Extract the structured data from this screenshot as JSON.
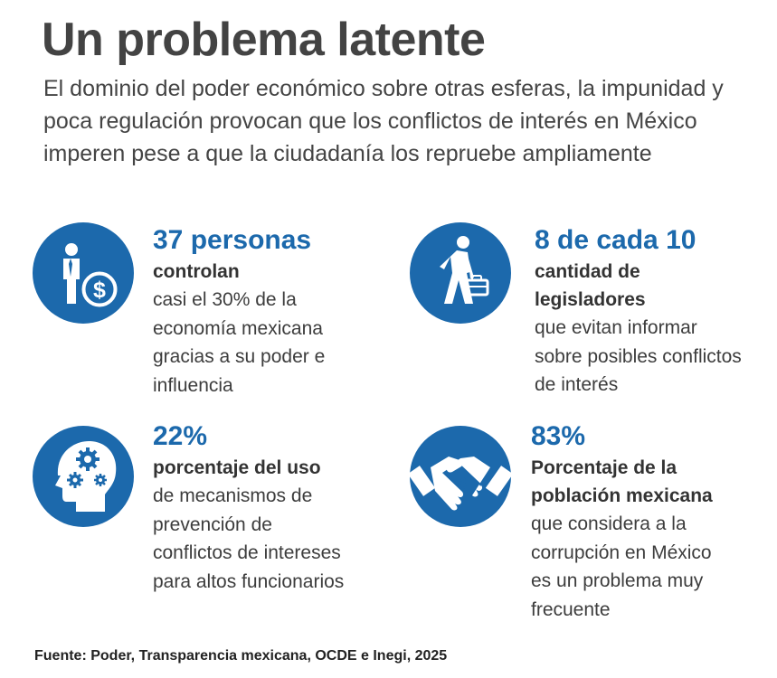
{
  "header": {
    "title": "Un problema latente",
    "subtitle": "El dominio del poder económico sobre otras esferas, la impunidad y poca regulación provocan que los conflictos de interés en México imperen pese a que la ciudadanía los repruebe ampliamente"
  },
  "stats": [
    {
      "value": "37 personas",
      "label": "controlan",
      "description": "casi el 30% de la economía mexicana gracias a su poder e influencia",
      "icon": "businessman-money-icon"
    },
    {
      "value": "8 de cada 10",
      "label": "cantidad de legisladores",
      "description": "que evitan informar sobre posibles conflictos de interés",
      "icon": "walking-briefcase-icon"
    },
    {
      "value": "22%",
      "label": "porcentaje del uso",
      "description": "de mecanismos de prevención de conflictos de intereses para altos funcionarios",
      "icon": "head-gears-icon"
    },
    {
      "value": "83%",
      "label": "Porcentaje de la población mexicana",
      "description": "que considera a la corrupción en México es un problema muy frecuente",
      "icon": "handshake-money-icon"
    }
  ],
  "colors": {
    "accent": "#1c69ac",
    "title": "#434343",
    "text": "#3d3d3d"
  },
  "source": "Fuente: Poder, Transparencia mexicana, OCDE e Inegi, 2025"
}
